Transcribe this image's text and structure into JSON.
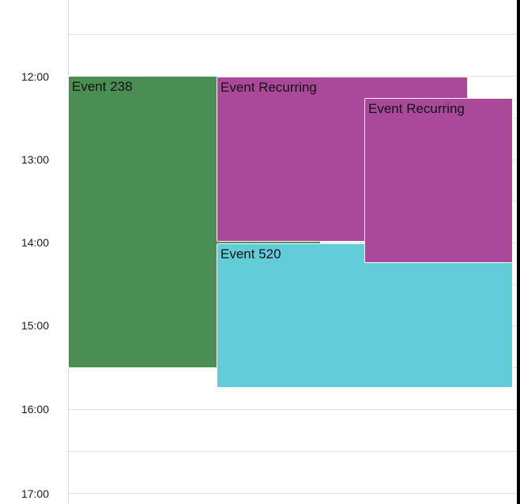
{
  "time_labels": [
    "12:00",
    "13:00",
    "14:00",
    "15:00",
    "16:00",
    "17:00"
  ],
  "events": [
    {
      "title": "Event 238",
      "color": "#4b8e53"
    },
    {
      "title": "Event Recurring",
      "color": "#aa4899"
    },
    {
      "title": "Event 520",
      "color": "#62ccd9"
    },
    {
      "title": "Event Recurring",
      "color": "#aa4899"
    }
  ]
}
